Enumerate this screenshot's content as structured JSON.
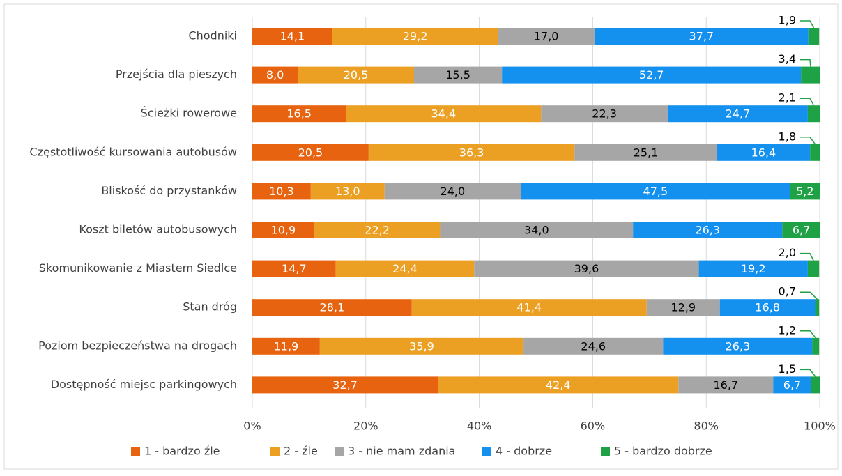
{
  "chart_data": {
    "type": "stacked_bar_horizontal",
    "categories": [
      "Chodniki",
      "Przejścia dla pieszych",
      "Ścieżki rowerowe",
      "Częstotliwość kursowania autobusów",
      "Bliskość do przystanków",
      "Koszt biletów autobusowych",
      "Skomunikowanie z Miastem Siedlce",
      "Stan dróg",
      "Poziom bezpieczeństwa na drogach",
      "Dostępność miejsc parkingowych"
    ],
    "series": [
      {
        "name": "1 - bardzo źle",
        "color": "#e8630f",
        "values": [
          14.1,
          8.0,
          16.5,
          20.5,
          10.3,
          10.9,
          14.7,
          28.1,
          11.9,
          32.7
        ],
        "value_labels": [
          "14,1",
          "8,0",
          "16,5",
          "20,5",
          "10,3",
          "10,9",
          "14,7",
          "28,1",
          "11,9",
          "32,7"
        ]
      },
      {
        "name": "2 - źle",
        "color": "#eba024",
        "values": [
          29.2,
          20.5,
          34.4,
          36.3,
          13.0,
          22.2,
          24.4,
          41.4,
          35.9,
          42.4
        ],
        "value_labels": [
          "29,2",
          "20,5",
          "34,4",
          "36,3",
          "13,0",
          "22,2",
          "24,4",
          "41,4",
          "35,9",
          "42,4"
        ]
      },
      {
        "name": "3 - nie mam zdania",
        "color": "#a6a6a6",
        "values": [
          17.0,
          15.5,
          22.3,
          25.1,
          24.0,
          34.0,
          39.6,
          12.9,
          24.6,
          16.7
        ],
        "value_labels": [
          "17,0",
          "15,5",
          "22,3",
          "25,1",
          "24,0",
          "34,0",
          "39,6",
          "12,9",
          "24,6",
          "16,7"
        ]
      },
      {
        "name": "4 - dobrze",
        "color": "#1490ee",
        "values": [
          37.7,
          52.7,
          24.7,
          16.4,
          47.5,
          26.3,
          19.2,
          16.8,
          26.3,
          6.7
        ],
        "value_labels": [
          "37,7",
          "52,7",
          "24,7",
          "16,4",
          "47,5",
          "26,3",
          "19,2",
          "16,8",
          "26,3",
          "6,7"
        ]
      },
      {
        "name": "5 - bardzo dobrze",
        "color": "#1fa246",
        "values": [
          1.9,
          3.4,
          2.1,
          1.8,
          5.2,
          6.7,
          2.0,
          0.7,
          1.2,
          1.5
        ],
        "value_labels": [
          "1,9",
          "3,4",
          "2,1",
          "1,8",
          "5,2",
          "6,7",
          "2,0",
          "0,7",
          "1,2",
          "1,5"
        ]
      }
    ],
    "xlim": [
      0,
      100
    ],
    "xticks": [
      {
        "value": 0,
        "label": "0%"
      },
      {
        "value": 20,
        "label": "20%"
      },
      {
        "value": 40,
        "label": "40%"
      },
      {
        "value": 60,
        "label": "60%"
      },
      {
        "value": 80,
        "label": "80%"
      },
      {
        "value": 100,
        "label": "100%"
      }
    ],
    "grid": true,
    "legend": "bottom"
  }
}
